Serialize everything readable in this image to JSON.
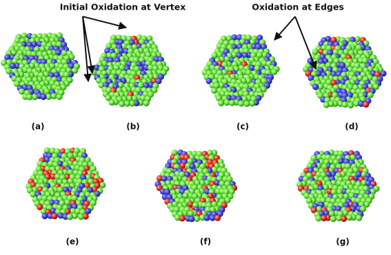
{
  "annotations": {
    "vertex": "Initial Oxidation at Vertex",
    "edges": "Oxidation at Edges"
  },
  "panels": [
    "(a)",
    "(b)",
    "(c)",
    "(d)",
    "(e)",
    "(f)",
    "(g)"
  ]
}
